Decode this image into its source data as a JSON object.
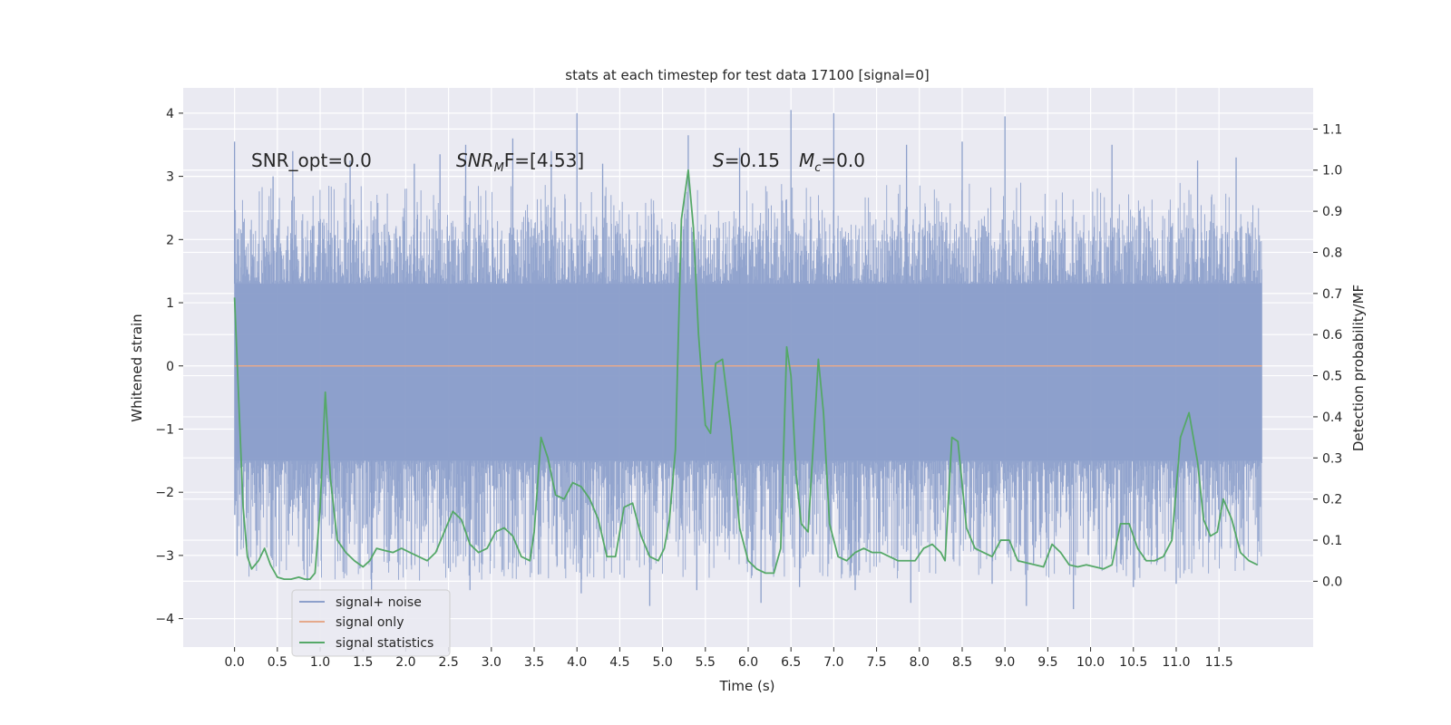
{
  "chart_data": {
    "type": "line",
    "title": "stats at each timestep for test data 17100 [signal=0]",
    "xlabel": "Time (s)",
    "ylabel": "Whitened strain",
    "y2label": "Detection probability/MF",
    "xlim": [
      -0.6,
      12.6
    ],
    "ylim": [
      -4.45,
      4.4
    ],
    "y2lim": [
      -0.16,
      1.2
    ],
    "x_ticks": [
      0.0,
      0.5,
      1.0,
      1.5,
      2.0,
      2.5,
      3.0,
      3.5,
      4.0,
      4.5,
      5.0,
      5.5,
      6.0,
      6.5,
      7.0,
      7.5,
      8.0,
      8.5,
      9.0,
      9.5,
      10.0,
      10.5,
      11.0,
      11.5
    ],
    "x_tick_labels": [
      "0.0",
      "0.5",
      "1.0",
      "1.5",
      "2.0",
      "2.5",
      "3.0",
      "3.5",
      "4.0",
      "4.5",
      "5.0",
      "5.5",
      "6.0",
      "6.5",
      "7.0",
      "7.5",
      "8.0",
      "8.5",
      "9.0",
      "9.5",
      "10.0",
      "10.5",
      "11.0",
      "11.5"
    ],
    "y_ticks": [
      4,
      3,
      2,
      1,
      0,
      -1,
      -2,
      -3,
      -4
    ],
    "y_tick_labels": [
      "4",
      "3",
      "2",
      "1",
      "0",
      "−1",
      "−2",
      "−3",
      "−4"
    ],
    "y2_ticks": [
      1.1,
      1.0,
      0.9,
      0.8,
      0.7,
      0.6,
      0.5,
      0.4,
      0.3,
      0.2,
      0.1,
      0.0
    ],
    "y2_tick_labels": [
      "1.1",
      "1.0",
      "0.9",
      "0.8",
      "0.7",
      "0.6",
      "0.5",
      "0.4",
      "0.3",
      "0.2",
      "0.1",
      "0.0"
    ],
    "grid": true,
    "legend_position": "lower-left",
    "annotations": {
      "snr_opt": "SNR_opt=0.0",
      "snr_mf": "SNR",
      "snr_mf_sub": "M",
      "snr_mf_tail": "F=[4.53]",
      "s_label": "S",
      "s_value": "=0.15",
      "mc_label": "M",
      "mc_sub": "c",
      "mc_value": "=0.0"
    },
    "series": [
      {
        "name": "signal+ noise",
        "color": "#8da0cb",
        "kind": "noise",
        "x_range": [
          0.0,
          12.0
        ],
        "envelope": {
          "core_min": -1.5,
          "core_max": 1.3,
          "peak_max": 4.05,
          "peak_min": -3.85
        },
        "peaks": [
          {
            "x": 0.0,
            "y": 3.55
          },
          {
            "x": 0.45,
            "y": 3.0
          },
          {
            "x": 0.68,
            "y": 3.4
          },
          {
            "x": 0.85,
            "y": -3.4
          },
          {
            "x": 1.35,
            "y": 3.25
          },
          {
            "x": 1.6,
            "y": -3.6
          },
          {
            "x": 2.1,
            "y": 3.2
          },
          {
            "x": 2.4,
            "y": 3.35
          },
          {
            "x": 2.5,
            "y": -3.2
          },
          {
            "x": 2.7,
            "y": 3.5
          },
          {
            "x": 2.75,
            "y": -3.55
          },
          {
            "x": 3.25,
            "y": 3.6
          },
          {
            "x": 3.55,
            "y": -3.3
          },
          {
            "x": 3.7,
            "y": 3.4
          },
          {
            "x": 4.0,
            "y": 4.0
          },
          {
            "x": 4.05,
            "y": -3.6
          },
          {
            "x": 4.3,
            "y": 3.2
          },
          {
            "x": 4.85,
            "y": -3.8
          },
          {
            "x": 5.3,
            "y": 3.65
          },
          {
            "x": 5.4,
            "y": -3.55
          },
          {
            "x": 5.9,
            "y": 3.45
          },
          {
            "x": 6.15,
            "y": -3.75
          },
          {
            "x": 6.5,
            "y": 4.05
          },
          {
            "x": 6.6,
            "y": -3.5
          },
          {
            "x": 7.0,
            "y": 4.0
          },
          {
            "x": 7.25,
            "y": -3.55
          },
          {
            "x": 7.85,
            "y": 3.5
          },
          {
            "x": 7.9,
            "y": -3.75
          },
          {
            "x": 8.5,
            "y": 3.55
          },
          {
            "x": 8.85,
            "y": -3.45
          },
          {
            "x": 9.0,
            "y": 3.95
          },
          {
            "x": 9.25,
            "y": -3.8
          },
          {
            "x": 9.8,
            "y": -3.85
          },
          {
            "x": 10.25,
            "y": 3.5
          },
          {
            "x": 10.5,
            "y": -3.5
          },
          {
            "x": 11.0,
            "y": -3.45
          },
          {
            "x": 11.25,
            "y": 3.25
          },
          {
            "x": 11.7,
            "y": 3.3
          }
        ]
      },
      {
        "name": "signal only",
        "color": "#e5a98c",
        "kind": "line",
        "axis": "left",
        "x": [
          0.0,
          12.0
        ],
        "y": [
          0.0,
          0.0
        ]
      },
      {
        "name": "signal statistics",
        "color": "#55a868",
        "kind": "line",
        "axis": "right",
        "x": [
          0.0,
          0.1,
          0.15,
          0.2,
          0.28,
          0.35,
          0.42,
          0.5,
          0.58,
          0.66,
          0.75,
          0.82,
          0.88,
          0.94,
          1.0,
          1.06,
          1.12,
          1.2,
          1.3,
          1.4,
          1.5,
          1.58,
          1.66,
          1.75,
          1.85,
          1.95,
          2.05,
          2.15,
          2.25,
          2.35,
          2.45,
          2.55,
          2.65,
          2.75,
          2.85,
          2.95,
          3.05,
          3.15,
          3.25,
          3.35,
          3.45,
          3.5,
          3.58,
          3.66,
          3.75,
          3.85,
          3.95,
          4.05,
          4.15,
          4.25,
          4.35,
          4.45,
          4.55,
          4.65,
          4.75,
          4.85,
          4.95,
          5.02,
          5.08,
          5.15,
          5.22,
          5.3,
          5.36,
          5.42,
          5.5,
          5.56,
          5.62,
          5.7,
          5.8,
          5.9,
          6.0,
          6.1,
          6.2,
          6.3,
          6.38,
          6.45,
          6.5,
          6.56,
          6.62,
          6.7,
          6.78,
          6.82,
          6.88,
          6.95,
          7.05,
          7.15,
          7.25,
          7.35,
          7.45,
          7.55,
          7.65,
          7.75,
          7.85,
          7.95,
          8.05,
          8.15,
          8.25,
          8.3,
          8.38,
          8.45,
          8.55,
          8.65,
          8.75,
          8.85,
          8.95,
          9.05,
          9.15,
          9.25,
          9.35,
          9.45,
          9.55,
          9.65,
          9.75,
          9.85,
          9.95,
          10.05,
          10.15,
          10.25,
          10.35,
          10.45,
          10.55,
          10.65,
          10.75,
          10.85,
          10.95,
          11.05,
          11.15,
          11.25,
          11.32,
          11.4,
          11.48,
          11.55,
          11.65,
          11.75,
          11.85,
          11.95
        ],
        "y": [
          0.69,
          0.18,
          0.06,
          0.03,
          0.05,
          0.08,
          0.04,
          0.01,
          0.005,
          0.005,
          0.01,
          0.005,
          0.005,
          0.02,
          0.18,
          0.46,
          0.25,
          0.1,
          0.07,
          0.05,
          0.035,
          0.05,
          0.08,
          0.075,
          0.07,
          0.08,
          0.07,
          0.06,
          0.05,
          0.07,
          0.12,
          0.17,
          0.15,
          0.09,
          0.07,
          0.08,
          0.12,
          0.13,
          0.11,
          0.06,
          0.05,
          0.12,
          0.35,
          0.3,
          0.21,
          0.2,
          0.24,
          0.23,
          0.2,
          0.15,
          0.06,
          0.06,
          0.18,
          0.19,
          0.11,
          0.06,
          0.05,
          0.08,
          0.15,
          0.32,
          0.88,
          1.0,
          0.86,
          0.6,
          0.38,
          0.36,
          0.53,
          0.54,
          0.37,
          0.13,
          0.05,
          0.03,
          0.02,
          0.02,
          0.08,
          0.57,
          0.5,
          0.26,
          0.14,
          0.12,
          0.4,
          0.54,
          0.41,
          0.14,
          0.06,
          0.05,
          0.07,
          0.08,
          0.07,
          0.07,
          0.06,
          0.05,
          0.05,
          0.05,
          0.08,
          0.09,
          0.07,
          0.05,
          0.35,
          0.34,
          0.13,
          0.08,
          0.07,
          0.06,
          0.1,
          0.1,
          0.05,
          0.045,
          0.04,
          0.035,
          0.09,
          0.07,
          0.04,
          0.035,
          0.04,
          0.035,
          0.03,
          0.04,
          0.14,
          0.14,
          0.08,
          0.05,
          0.05,
          0.06,
          0.1,
          0.35,
          0.41,
          0.29,
          0.15,
          0.11,
          0.12,
          0.2,
          0.15,
          0.07,
          0.05,
          0.04
        ]
      }
    ]
  }
}
